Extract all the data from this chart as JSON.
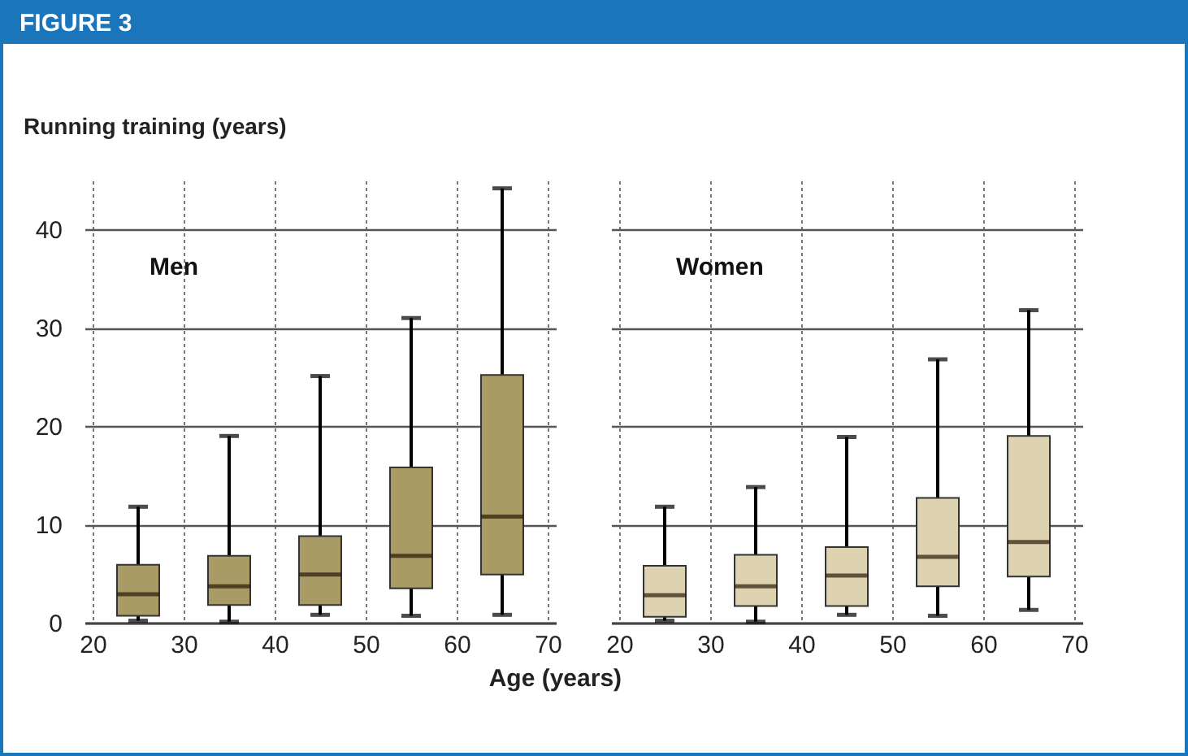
{
  "chart_data": [
    {
      "type": "box",
      "title": "FIGURE 3",
      "ylabel": "Running training (years)",
      "xlabel": "Age (years)",
      "annotations": [
        "Men"
      ],
      "x": [
        25,
        35,
        45,
        55,
        65
      ],
      "xlim": [
        20,
        70
      ],
      "xticks": [
        20,
        30,
        40,
        50,
        60,
        70
      ],
      "ylim": [
        0,
        45
      ],
      "yticks": [
        0,
        10,
        20,
        30,
        40
      ],
      "grid": true,
      "color": "#a99b66",
      "boxes": [
        {
          "low": 0.2,
          "q1": 0.7,
          "median": 2.9,
          "q3": 5.9,
          "high": 11.8
        },
        {
          "low": 0.1,
          "q1": 1.8,
          "median": 3.7,
          "q3": 6.8,
          "high": 19.0
        },
        {
          "low": 0.8,
          "q1": 1.8,
          "median": 4.9,
          "q3": 8.8,
          "high": 25.1
        },
        {
          "low": 0.7,
          "q1": 3.5,
          "median": 6.8,
          "q3": 15.8,
          "high": 31.0
        },
        {
          "low": 0.8,
          "q1": 4.9,
          "median": 10.8,
          "q3": 25.2,
          "high": 44.2
        }
      ]
    },
    {
      "type": "box",
      "annotations": [
        "Women"
      ],
      "x": [
        25,
        35,
        45,
        55,
        65
      ],
      "xlim": [
        20,
        70
      ],
      "xticks": [
        20,
        30,
        40,
        50,
        60,
        70
      ],
      "ylim": [
        0,
        45
      ],
      "yticks": [
        0,
        10,
        20,
        30,
        40
      ],
      "grid": true,
      "tick_labels": "x",
      "color": "#ddd3b0",
      "boxes": [
        {
          "low": 0.2,
          "q1": 0.6,
          "median": 2.8,
          "q3": 5.8,
          "high": 11.8
        },
        {
          "low": 0.1,
          "q1": 1.7,
          "median": 3.7,
          "q3": 6.9,
          "high": 13.8
        },
        {
          "low": 0.8,
          "q1": 1.7,
          "median": 4.8,
          "q3": 7.7,
          "high": 18.9
        },
        {
          "low": 0.7,
          "q1": 3.7,
          "median": 6.7,
          "q3": 12.7,
          "high": 26.8
        },
        {
          "low": 1.3,
          "q1": 4.7,
          "median": 8.2,
          "q3": 19.0,
          "high": 31.8
        }
      ]
    }
  ]
}
